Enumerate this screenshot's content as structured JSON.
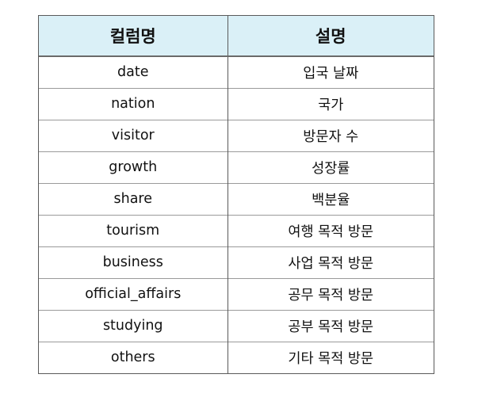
{
  "table": {
    "headers": [
      "컬럼명",
      "설명"
    ],
    "rows": [
      {
        "name": "date",
        "desc": "입국 날짜"
      },
      {
        "name": "nation",
        "desc": "국가"
      },
      {
        "name": "visitor",
        "desc": "방문자 수"
      },
      {
        "name": "growth",
        "desc": "성장률"
      },
      {
        "name": "share",
        "desc": "백분율"
      },
      {
        "name": "tourism",
        "desc": "여행 목적 방문"
      },
      {
        "name": "business",
        "desc": "사업 목적 방문"
      },
      {
        "name": "official_affairs",
        "desc": "공무 목적 방문"
      },
      {
        "name": "studying",
        "desc": "공부 목적 방문"
      },
      {
        "name": "others",
        "desc": "기타 목적 방문"
      }
    ],
    "colors": {
      "header_background": "#daf0f7",
      "border": "#5a5a5a"
    }
  }
}
